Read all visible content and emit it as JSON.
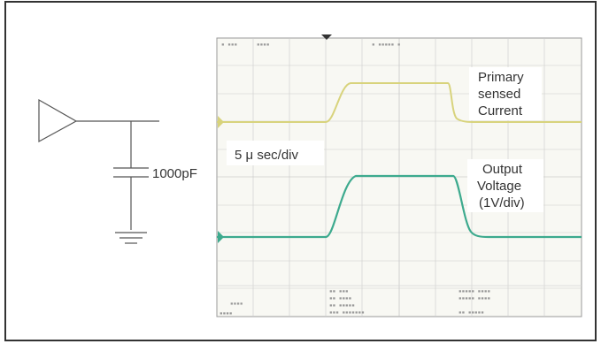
{
  "figure": {
    "capacitor_label": "1000pF",
    "timebase_label": "5 μ sec/div",
    "current_label": [
      "Primary",
      "sensed",
      "Current"
    ],
    "voltage_label": [
      "Output",
      "Voltage",
      "(1V/div)"
    ]
  },
  "colors": {
    "border": "#333333",
    "current_trace": "#d8d37c",
    "voltage_trace": "#3daa8e",
    "grid": "#cccccc",
    "circuit": "#555555"
  }
}
